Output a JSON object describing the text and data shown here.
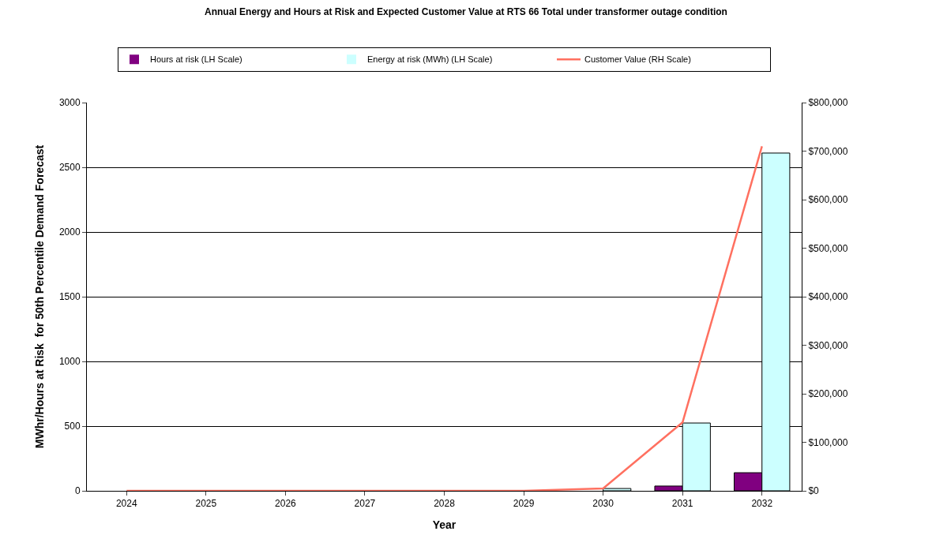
{
  "chart_data": {
    "type": "bar",
    "title": "Annual Energy and Hours at Risk and Expected Customer Value at RTS 66 Total under transformer outage condition",
    "xlabel": "Year",
    "ylabel": "MWhr/Hours at Risk  for 50th Percentile Demand Forecast",
    "categories": [
      "2024",
      "2025",
      "2026",
      "2027",
      "2028",
      "2029",
      "2030",
      "2031",
      "2032"
    ],
    "series": [
      {
        "name": "Hours at risk (LH Scale)",
        "color": "#800080",
        "values": [
          0,
          0,
          0,
          0,
          0,
          0,
          0,
          37,
          140
        ]
      },
      {
        "name": "Energy at risk (MWh) (LH Scale)",
        "color": "#ccffff",
        "values": [
          0,
          0,
          0,
          0,
          0,
          0,
          18,
          524,
          2610
        ]
      },
      {
        "name": "Customer Value (RH Scale)",
        "color": "#ff7060",
        "type": "line",
        "axis": "y2",
        "values": [
          0,
          0,
          0,
          0,
          0,
          0,
          5000,
          141000,
          710000
        ]
      }
    ],
    "ylim": [
      0,
      3000
    ],
    "yticks": [
      0,
      500,
      1000,
      1500,
      2000,
      2500,
      3000
    ],
    "y2lim": [
      0,
      800000
    ],
    "y2ticks": [
      {
        "value": 0,
        "label": "$0"
      },
      {
        "value": 100000,
        "label": "$100,000"
      },
      {
        "value": 200000,
        "label": "$200,000"
      },
      {
        "value": 300000,
        "label": "$300,000"
      },
      {
        "value": 400000,
        "label": "$400,000"
      },
      {
        "value": 500000,
        "label": "$500,000"
      },
      {
        "value": 600000,
        "label": "$600,000"
      },
      {
        "value": 700000,
        "label": "$700,000"
      },
      {
        "value": 800000,
        "label": "$800,000"
      }
    ],
    "grid": "y",
    "legend": "top",
    "marker": "none"
  }
}
